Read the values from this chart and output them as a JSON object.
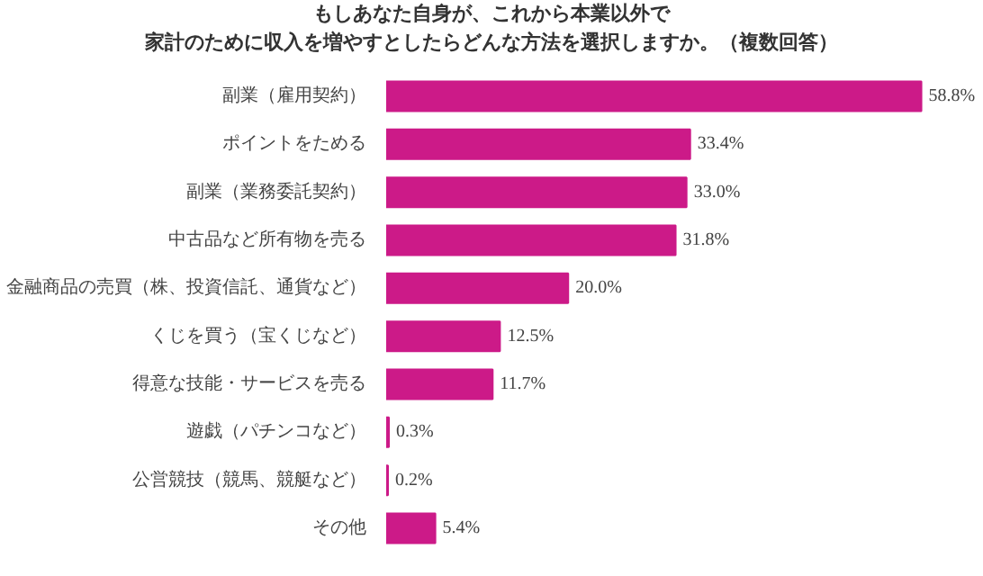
{
  "chart_data": {
    "type": "bar",
    "orientation": "horizontal",
    "title": "もしあなた自身が、これから本業以外で",
    "subtitle": "家計のために収入を増やすとしたらどんな方法を選択しますか。（複数回答）",
    "categories": [
      "副業（雇用契約）",
      "ポイントをためる",
      "副業（業務委託契約）",
      "中古品など所有物を売る",
      "金融商品の売買（株、投資信託、通貨など）",
      "くじを買う（宝くじなど）",
      "得意な技能・サービスを売る",
      "遊戯（パチンコなど）",
      "公営競技（競馬、競艇など）",
      "その他"
    ],
    "values": [
      58.8,
      33.4,
      33.0,
      31.8,
      20.0,
      12.5,
      11.7,
      0.3,
      0.2,
      5.4
    ],
    "value_labels": [
      "58.8%",
      "33.4%",
      "33.0%",
      "31.8%",
      "20.0%",
      "12.5%",
      "11.7%",
      "0.3%",
      "0.2%",
      "5.4%"
    ],
    "color": "#cc1a88",
    "grid": false
  }
}
